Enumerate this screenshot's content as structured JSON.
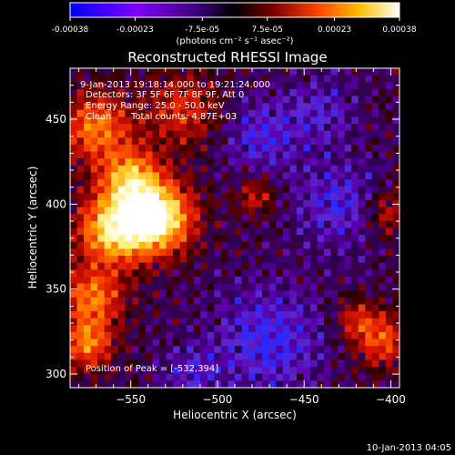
{
  "colorbar": {
    "tick_labels": [
      "-0.00038",
      "-0.00023",
      "-7.5e-05",
      "7.5e-05",
      "0.00023",
      "0.00038"
    ],
    "tick_values": [
      -0.00038,
      -0.00023,
      -7.5e-05,
      7.5e-05,
      0.00023,
      0.00038
    ],
    "range": [
      -0.00038,
      0.00038
    ],
    "unit_label": "(photons cm⁻² s⁻¹ asec⁻²)",
    "colors": {
      "negative": [
        "#0000ff",
        "#8000ff",
        "#400080",
        "#000000"
      ],
      "positive": [
        "#000000",
        "#800000",
        "#ff4000",
        "#ffc000",
        "#ffffff"
      ]
    }
  },
  "chart_data": {
    "type": "heatmap",
    "title": "Reconstructed RHESSI Image",
    "xlabel": "Heliocentric X (arcsec)",
    "ylabel": "Heliocentric Y (arcsec)",
    "xlim": [
      -585,
      -395
    ],
    "ylim": [
      292,
      480
    ],
    "x_ticks": [
      -550,
      -500,
      -450,
      -400
    ],
    "x_tick_labels": [
      "−550",
      "−500",
      "−450",
      "−400"
    ],
    "y_ticks": [
      300,
      350,
      400,
      450
    ],
    "y_tick_labels": [
      "300",
      "350",
      "400",
      "450"
    ],
    "grid": false,
    "colormap": "rhessi-diverging (blue-black-red-yellow-white)",
    "peak": {
      "x": -532,
      "y": 394
    },
    "bright_regions": [
      {
        "x": -535,
        "y": 392,
        "sigma": 14,
        "amplitude": 1.0
      },
      {
        "x": -560,
        "y": 385,
        "sigma": 14,
        "amplitude": 0.8
      },
      {
        "x": -550,
        "y": 415,
        "sigma": 12,
        "amplitude": 0.65
      },
      {
        "x": -570,
        "y": 445,
        "sigma": 14,
        "amplitude": 0.55
      },
      {
        "x": -572,
        "y": 345,
        "sigma": 12,
        "amplitude": 0.55
      },
      {
        "x": -575,
        "y": 318,
        "sigma": 10,
        "amplitude": 0.55
      },
      {
        "x": -520,
        "y": 455,
        "sigma": 15,
        "amplitude": 0.35
      },
      {
        "x": -405,
        "y": 320,
        "sigma": 11,
        "amplitude": 0.45
      },
      {
        "x": -400,
        "y": 395,
        "sigma": 10,
        "amplitude": 0.3
      },
      {
        "x": -478,
        "y": 405,
        "sigma": 8,
        "amplitude": 0.3
      },
      {
        "x": -420,
        "y": 332,
        "sigma": 8,
        "amplitude": 0.3
      }
    ],
    "dim_regions": [
      {
        "x": -470,
        "y": 320,
        "sigma": 22,
        "amplitude": -0.3
      },
      {
        "x": -430,
        "y": 400,
        "sigma": 18,
        "amplitude": -0.25
      },
      {
        "x": -475,
        "y": 440,
        "sigma": 16,
        "amplitude": -0.25
      },
      {
        "x": -440,
        "y": 455,
        "sigma": 14,
        "amplitude": -0.2
      },
      {
        "x": -515,
        "y": 300,
        "sigma": 12,
        "amplitude": -0.2
      }
    ]
  },
  "info": {
    "time_range": "9-Jan-2013 19:18:14.000 to 19:21:24.000",
    "detectors": "Detectors: 3F 5F 6F 7F 8F 9F, Att 0",
    "energy": "Energy Range: 25.0 - 50.0 keV",
    "algorithm": "Clean",
    "total_counts": "Total counts: 4.87E+03",
    "peak_position": "Position of Peak = [-532,394]"
  },
  "footer": {
    "timestamp": "10-Jan-2013 04:05"
  }
}
